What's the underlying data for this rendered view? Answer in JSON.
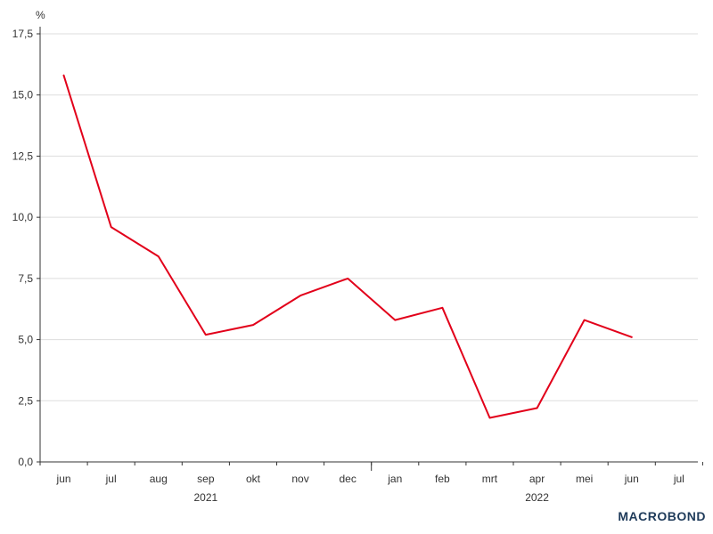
{
  "branding": {
    "logo_text": "MACROBOND"
  },
  "colors": {
    "series": "#e2001a",
    "grid": "#dddddd",
    "axis": "#333333",
    "logo": "#1f3b5a"
  },
  "chart_data": {
    "type": "line",
    "unit_label": "%",
    "x": [
      "jun",
      "jul",
      "aug",
      "sep",
      "okt",
      "nov",
      "dec",
      "jan",
      "feb",
      "mrt",
      "apr",
      "mei",
      "jun"
    ],
    "x_axis_labels": [
      "jun",
      "jul",
      "aug",
      "sep",
      "okt",
      "nov",
      "dec",
      "jan",
      "feb",
      "mrt",
      "apr",
      "mei",
      "jun",
      "jul"
    ],
    "year_labels": [
      "2021",
      "2022"
    ],
    "series": [
      {
        "values": [
          15.8,
          9.6,
          8.4,
          5.2,
          5.6,
          6.8,
          7.5,
          5.8,
          6.3,
          1.8,
          2.2,
          5.8,
          5.1
        ]
      }
    ],
    "ylim": [
      0,
      17.5
    ],
    "y_ticks": [
      "0,0",
      "2,5",
      "5,0",
      "7,5",
      "10,0",
      "12,5",
      "15,0",
      "17,5"
    ],
    "grid": true
  }
}
